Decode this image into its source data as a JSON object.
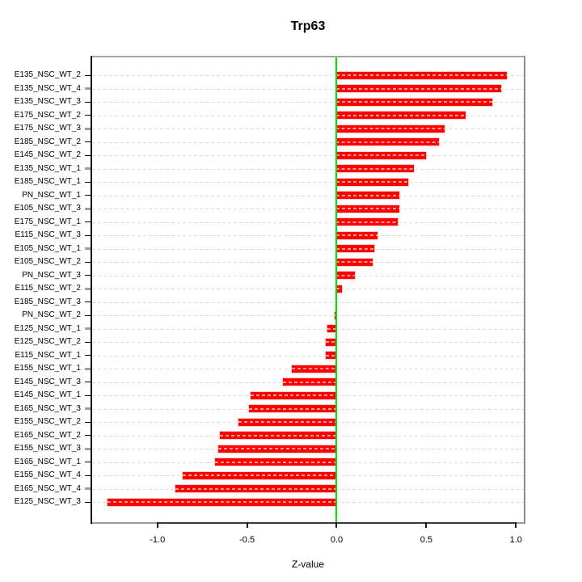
{
  "chart_data": {
    "type": "bar",
    "orientation": "horizontal",
    "title": "Trp63",
    "xlabel": "Z-value",
    "ylabel": "",
    "grid": true,
    "xlim": [
      -1.364,
      1.044
    ],
    "xticks": [
      -1.0,
      -0.5,
      0.0,
      0.5,
      1.0
    ],
    "xtick_labels": [
      "-1.0",
      "-0.5",
      "0.0",
      "0.5",
      "1.0"
    ],
    "zero_reference_line": 0.0,
    "categories": [
      "E135_NSC_WT_2",
      "E135_NSC_WT_4",
      "E135_NSC_WT_3",
      "E175_NSC_WT_2",
      "E175_NSC_WT_3",
      "E185_NSC_WT_2",
      "E145_NSC_WT_2",
      "E135_NSC_WT_1",
      "E185_NSC_WT_1",
      "PN_NSC_WT_1",
      "E105_NSC_WT_3",
      "E175_NSC_WT_1",
      "E115_NSC_WT_3",
      "E105_NSC_WT_1",
      "E105_NSC_WT_2",
      "PN_NSC_WT_3",
      "E115_NSC_WT_2",
      "E185_NSC_WT_3",
      "PN_NSC_WT_2",
      "E125_NSC_WT_1",
      "E125_NSC_WT_2",
      "E115_NSC_WT_1",
      "E155_NSC_WT_1",
      "E145_NSC_WT_3",
      "E145_NSC_WT_1",
      "E165_NSC_WT_3",
      "E155_NSC_WT_2",
      "E165_NSC_WT_2",
      "E155_NSC_WT_3",
      "E165_NSC_WT_1",
      "E155_NSC_WT_4",
      "E165_NSC_WT_4",
      "E125_NSC_WT_3"
    ],
    "values": [
      0.95,
      0.92,
      0.87,
      0.72,
      0.6,
      0.57,
      0.5,
      0.43,
      0.4,
      0.35,
      0.35,
      0.34,
      0.23,
      0.21,
      0.2,
      0.1,
      0.03,
      0.0,
      -0.01,
      -0.05,
      -0.06,
      -0.06,
      -0.25,
      -0.3,
      -0.48,
      -0.49,
      -0.55,
      -0.65,
      -0.66,
      -0.68,
      -0.86,
      -0.9,
      -1.28
    ],
    "colors": {
      "bar": "#ff0000",
      "zero_line": "#00e400",
      "gridline": "#dcdcdc",
      "box": "#a6a6a6",
      "axis": "#000000"
    }
  }
}
